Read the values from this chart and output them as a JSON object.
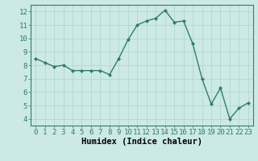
{
  "x": [
    0,
    1,
    2,
    3,
    4,
    5,
    6,
    7,
    8,
    9,
    10,
    11,
    12,
    13,
    14,
    15,
    16,
    17,
    18,
    19,
    20,
    21,
    22,
    23
  ],
  "y": [
    8.5,
    8.2,
    7.9,
    8.0,
    7.6,
    7.6,
    7.6,
    7.6,
    7.3,
    8.5,
    9.9,
    11.0,
    11.3,
    11.5,
    12.1,
    11.2,
    11.3,
    9.6,
    7.0,
    5.1,
    6.3,
    4.0,
    4.8,
    5.2
  ],
  "line_color": "#2e7d6e",
  "marker": "D",
  "marker_size": 2.0,
  "bg_color": "#cce9e5",
  "grid_color": "#b0d8d3",
  "xlabel": "Humidex (Indice chaleur)",
  "xlim": [
    -0.5,
    23.5
  ],
  "ylim": [
    3.5,
    12.5
  ],
  "yticks": [
    4,
    5,
    6,
    7,
    8,
    9,
    10,
    11,
    12
  ],
  "xticks": [
    0,
    1,
    2,
    3,
    4,
    5,
    6,
    7,
    8,
    9,
    10,
    11,
    12,
    13,
    14,
    15,
    16,
    17,
    18,
    19,
    20,
    21,
    22,
    23
  ],
  "tick_label_fontsize": 6.5,
  "xlabel_fontsize": 7.5,
  "linewidth": 1.0
}
